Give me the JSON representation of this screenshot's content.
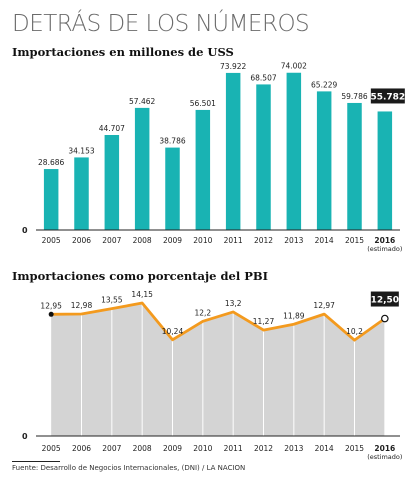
{
  "header": {
    "title": "DETRÁS DE LOS NÚMEROS"
  },
  "source": "Fuente: Desarrollo de Negocios Internacionales, (DNI) / LA NACION",
  "colors": {
    "bar": "#19b3b3",
    "area": "#d4d4d4",
    "line": "#f39a1e",
    "highlight_box": "#1a1a1a",
    "text": "#222222"
  },
  "chart_data": [
    {
      "type": "bar",
      "title": "Importaciones en millones de USS",
      "categories": [
        "2005",
        "2006",
        "2007",
        "2008",
        "2009",
        "2010",
        "2011",
        "2012",
        "2013",
        "2014",
        "2015",
        "2016"
      ],
      "category_note": "(estimado)",
      "values": [
        28686,
        34153,
        44707,
        57462,
        38786,
        56501,
        73922,
        68507,
        74002,
        65229,
        59786,
        55782
      ],
      "labels": [
        "28.686",
        "34.153",
        "44.707",
        "57.462",
        "38.786",
        "56.501",
        "73.922",
        "68.507",
        "74.002",
        "65.229",
        "59.786",
        "55.782"
      ],
      "ylim": [
        0,
        80000
      ],
      "y_tick_label": "0",
      "highlight_index": 11,
      "grid": false
    },
    {
      "type": "area",
      "title": "Importaciones como porcentaje del PBI",
      "categories": [
        "2005",
        "2006",
        "2007",
        "2008",
        "2009",
        "2010",
        "2011",
        "2012",
        "2013",
        "2014",
        "2015",
        "2016"
      ],
      "category_note": "(estimado)",
      "values": [
        12.95,
        12.98,
        13.55,
        14.15,
        10.24,
        12.2,
        13.2,
        11.27,
        11.89,
        12.97,
        10.2,
        12.5
      ],
      "labels": [
        "12,95",
        "12,98",
        "13,55",
        "14,15",
        "10,24",
        "12,2",
        "13,2",
        "11,27",
        "11,89",
        "12,97",
        "10,2",
        "12,50"
      ],
      "ylim": [
        0,
        16.6
      ],
      "y_tick_label": "0",
      "highlight_index": 11,
      "grid": false
    }
  ]
}
